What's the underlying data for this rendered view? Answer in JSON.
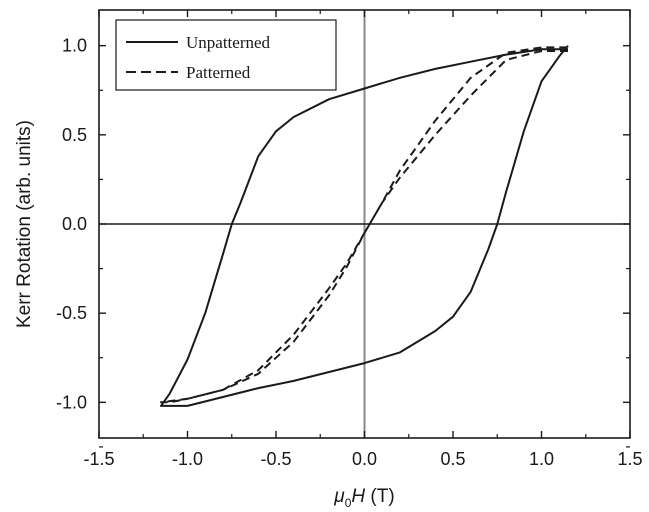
{
  "chart_data": {
    "type": "line",
    "title": "",
    "xlabel": "μ0H (T)",
    "ylabel": "Kerr Rotation (arb. units)",
    "xlim": [
      -1.5,
      1.5
    ],
    "ylim": [
      -1.2,
      1.2
    ],
    "xticks": [
      -1.5,
      -1.0,
      -0.5,
      0.0,
      0.5,
      1.0,
      1.5
    ],
    "xtick_labels": [
      "-1.5",
      "-1.0",
      "-0.5",
      "0.0",
      "0.5",
      "1.0",
      "1.5"
    ],
    "yticks": [
      -1.0,
      -0.5,
      0.0,
      0.5,
      1.0
    ],
    "ytick_labels": [
      "-1.0",
      "-0.5",
      "0.0",
      "0.5",
      "1.0"
    ],
    "grid": false,
    "legend_position": "top-left",
    "reference_lines": {
      "x": 0.0,
      "y": 0.0
    },
    "series": [
      {
        "name": "Unpatterned",
        "style": "solid",
        "color": "#1a1a1a",
        "x": [
          1.15,
          1.0,
          0.8,
          0.6,
          0.4,
          0.2,
          0.0,
          -0.2,
          -0.4,
          -0.5,
          -0.6,
          -0.7,
          -0.75,
          -0.8,
          -0.9,
          -1.0,
          -1.1,
          -1.15,
          -1.0,
          -0.8,
          -0.6,
          -0.4,
          -0.2,
          0.0,
          0.2,
          0.4,
          0.5,
          0.6,
          0.7,
          0.75,
          0.8,
          0.9,
          1.0,
          1.1,
          1.15
        ],
        "y": [
          0.98,
          0.98,
          0.95,
          0.91,
          0.87,
          0.82,
          0.76,
          0.7,
          0.6,
          0.52,
          0.38,
          0.12,
          0.0,
          -0.17,
          -0.5,
          -0.76,
          -0.95,
          -1.02,
          -1.02,
          -0.97,
          -0.92,
          -0.88,
          -0.83,
          -0.78,
          -0.72,
          -0.6,
          -0.52,
          -0.38,
          -0.14,
          0.0,
          0.18,
          0.52,
          0.8,
          0.94,
          1.0
        ]
      },
      {
        "name": "Patterned",
        "style": "dashed",
        "color": "#1a1a1a",
        "x": [
          1.15,
          1.0,
          0.8,
          0.6,
          0.4,
          0.2,
          0.1,
          0.0,
          -0.1,
          -0.2,
          -0.4,
          -0.6,
          -0.8,
          -1.0,
          -1.1,
          -1.15,
          -1.0,
          -0.8,
          -0.6,
          -0.4,
          -0.2,
          -0.1,
          0.0,
          0.1,
          0.2,
          0.4,
          0.6,
          0.8,
          1.0,
          1.15
        ],
        "y": [
          0.97,
          0.97,
          0.92,
          0.72,
          0.5,
          0.26,
          0.12,
          -0.05,
          -0.22,
          -0.36,
          -0.62,
          -0.82,
          -0.93,
          -0.98,
          -1.0,
          -1.0,
          -0.98,
          -0.93,
          -0.84,
          -0.66,
          -0.4,
          -0.24,
          -0.05,
          0.12,
          0.3,
          0.58,
          0.82,
          0.96,
          0.99,
          0.99
        ]
      }
    ]
  }
}
